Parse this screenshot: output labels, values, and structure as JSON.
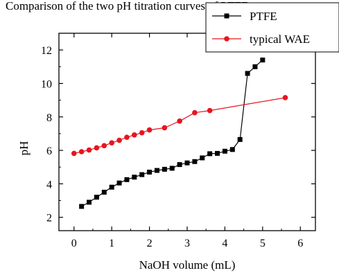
{
  "caption": "Comparison of the two pH titration curves of PTFE m",
  "chart_data": {
    "type": "line",
    "title": "",
    "xlabel": "NaOH volume (mL)",
    "ylabel": "pH",
    "xlim": [
      -0.4,
      6.4
    ],
    "ylim": [
      1.2,
      13.0
    ],
    "xticks": [
      0,
      1,
      2,
      3,
      4,
      5,
      6
    ],
    "yticks": [
      2,
      4,
      6,
      8,
      10,
      12
    ],
    "grid": false,
    "legend_position": "top-right",
    "series": [
      {
        "name": "PTFE",
        "color": "#000000",
        "marker": "square",
        "x": [
          0.2,
          0.4,
          0.6,
          0.8,
          1.0,
          1.2,
          1.4,
          1.6,
          1.8,
          2.0,
          2.2,
          2.4,
          2.6,
          2.8,
          3.0,
          3.2,
          3.4,
          3.6,
          3.8,
          4.0,
          4.2,
          4.4,
          4.6,
          4.8,
          5.0
        ],
        "y": [
          2.65,
          2.9,
          3.2,
          3.5,
          3.8,
          4.05,
          4.25,
          4.4,
          4.55,
          4.7,
          4.8,
          4.87,
          4.93,
          5.15,
          5.25,
          5.33,
          5.55,
          5.8,
          5.82,
          5.95,
          6.05,
          6.65,
          10.6,
          11.0,
          11.4
        ]
      },
      {
        "name": "typical WAE",
        "color": "#e8141e",
        "marker": "circle",
        "x": [
          0.0,
          0.2,
          0.4,
          0.6,
          0.8,
          1.0,
          1.2,
          1.4,
          1.6,
          1.8,
          2.0,
          2.4,
          2.8,
          3.2,
          3.6,
          5.6
        ],
        "y": [
          5.82,
          5.92,
          6.02,
          6.15,
          6.28,
          6.45,
          6.6,
          6.78,
          6.92,
          7.05,
          7.22,
          7.35,
          7.75,
          8.25,
          8.38,
          9.15
        ]
      }
    ]
  }
}
